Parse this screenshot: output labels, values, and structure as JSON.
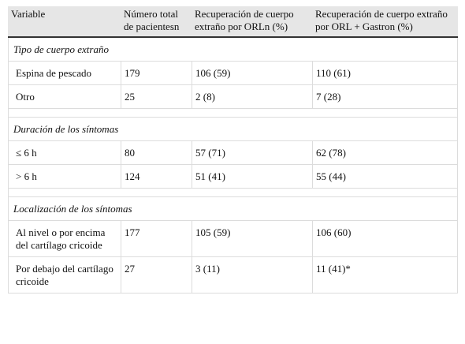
{
  "table": {
    "header": [
      "Variable",
      "Número total de pacientesn",
      "Recuperación de cuerpo extraño por ORLn (%)",
      "Recuperación de cuerpo extraño por ORL + Gastron (%)"
    ],
    "sections": [
      {
        "title": "Tipo de cuerpo extraño",
        "rows": [
          [
            "Espina de pescado",
            "179",
            "106 (59)",
            "110 (61)"
          ],
          [
            "Otro",
            "25",
            "2 (8)",
            "7 (28)"
          ]
        ]
      },
      {
        "title": "Duración de los síntomas",
        "rows": [
          [
            "≤ 6 h",
            "80",
            "57 (71)",
            "62 (78)"
          ],
          [
            "> 6 h",
            "124",
            "51 (41)",
            "55 (44)"
          ]
        ]
      },
      {
        "title": "Localización de los síntomas",
        "rows": [
          [
            "Al nivel o por encima del cartílago cricoide",
            "177",
            "105 (59)",
            "106 (60)"
          ],
          [
            "Por debajo del cartílago cricoide",
            "27",
            "3 (11)",
            "11 (41)*"
          ]
        ]
      }
    ]
  }
}
